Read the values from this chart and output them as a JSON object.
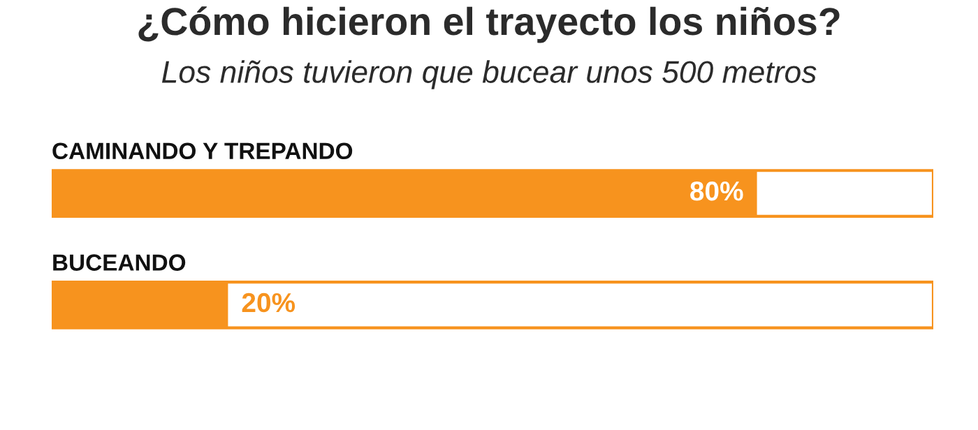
{
  "chart_data": {
    "type": "bar",
    "orientation": "horizontal",
    "title": "¿Cómo hicieron el trayecto los niños?",
    "subtitle": "Los niños tuvieron que bucear unos 500 metros",
    "categories": [
      "CAMINANDO Y TREPANDO",
      "BUCEANDO"
    ],
    "values": [
      80,
      20
    ],
    "value_labels": [
      "80%",
      "20%"
    ],
    "color": "#f7931e",
    "xlim": [
      0,
      100
    ],
    "tick_labels": false,
    "legend": false
  }
}
